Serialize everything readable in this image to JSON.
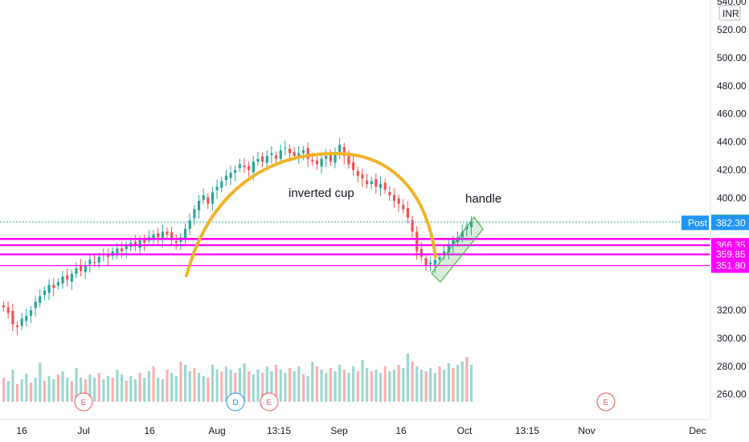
{
  "chart_data": {
    "type": "candlestick",
    "currency": "INR",
    "y_axis_ticks": [
      540,
      520,
      500,
      480,
      460,
      440,
      420,
      400,
      320,
      300,
      280,
      260
    ],
    "y_tick_labels": [
      "540.00",
      "520.00",
      "500.00",
      "480.00",
      "460.00",
      "440.00",
      "420.00",
      "400.00",
      "320.00",
      "300.00",
      "280.00",
      "260.00"
    ],
    "x_tick_labels": [
      "16",
      "Jul",
      "16",
      "Aug",
      "13:15",
      "Sep",
      "16",
      "Oct",
      "13:15",
      "Nov",
      "Dec"
    ],
    "price_levels": [
      {
        "label": "383.00",
        "value": 383.0,
        "color": "#26a69a"
      },
      {
        "label": "382.30",
        "value": 382.3,
        "color": "#2196f3",
        "tag": "Post"
      },
      {
        "label": "366.35",
        "value": 366.35,
        "color": "#ff00ff"
      },
      {
        "label": "359.85",
        "value": 359.85,
        "color": "#ff00ff"
      },
      {
        "label": "351.80",
        "value": 351.8,
        "color": "#ff00ff"
      }
    ],
    "annotations": [
      "inverted cup",
      "handle"
    ],
    "event_markers": [
      "E",
      "D",
      "E",
      "E"
    ],
    "colors": {
      "up": "#26a69a",
      "down": "#ef5350",
      "cup": "#f0b429",
      "support": "#ff00ff",
      "channel": "#4caf50",
      "last_price": "#26a69a",
      "post": "#2196f3"
    },
    "ohlc_trend_closes": [
      322,
      318,
      310,
      308,
      314,
      316,
      320,
      326,
      330,
      334,
      338,
      336,
      340,
      344,
      342,
      346,
      350,
      348,
      352,
      356,
      354,
      358,
      360,
      358,
      362,
      364,
      362,
      366,
      368,
      366,
      370,
      368,
      372,
      374,
      372,
      376,
      374,
      370,
      368,
      372,
      378,
      384,
      392,
      398,
      402,
      396,
      404,
      408,
      412,
      416,
      418,
      420,
      424,
      422,
      420,
      426,
      428,
      426,
      430,
      432,
      428,
      434,
      436,
      432,
      430,
      432,
      434,
      428,
      426,
      424,
      428,
      430,
      426,
      432,
      438,
      430,
      424,
      420,
      416,
      414,
      410,
      412,
      408,
      410,
      406,
      402,
      398,
      396,
      392,
      386,
      376,
      362,
      358,
      352,
      354,
      356,
      358,
      362,
      366,
      370,
      372,
      376,
      380,
      383
    ],
    "volumes": [
      30,
      26,
      40,
      22,
      28,
      35,
      24,
      30,
      48,
      26,
      32,
      28,
      34,
      38,
      30,
      26,
      42,
      30,
      28,
      34,
      30,
      36,
      28,
      32,
      30,
      40,
      34,
      26,
      32,
      28,
      36,
      30,
      38,
      44,
      30,
      28,
      40,
      36,
      32,
      50,
      46,
      38,
      42,
      36,
      32,
      30,
      46,
      40,
      38,
      44,
      40,
      36,
      42,
      48,
      38,
      34,
      40,
      36,
      44,
      38,
      46,
      40,
      36,
      42,
      38,
      44,
      34,
      32,
      50,
      44,
      40,
      36,
      42,
      38,
      46,
      40,
      36,
      44,
      38,
      52,
      42,
      38,
      40,
      36,
      44,
      38,
      40,
      46,
      42,
      60,
      50,
      44,
      40,
      38,
      42,
      36,
      44,
      40,
      48,
      42,
      46,
      50,
      56,
      46
    ]
  }
}
